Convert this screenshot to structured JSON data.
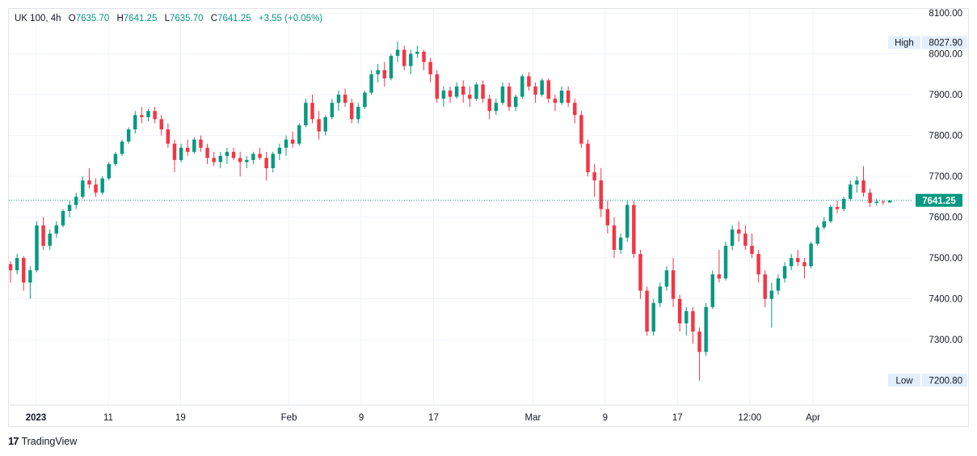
{
  "legend": {
    "symbol": "UK 100, 4h",
    "o_label": "O",
    "o_value": "7635.70",
    "h_label": "H",
    "h_value": "7641.25",
    "l_label": "L",
    "l_value": "7635.70",
    "c_label": "C",
    "c_value": "7641.25",
    "change": "+3.55 (+0.05%)"
  },
  "footer": {
    "logo": "17",
    "brand": "TradingView"
  },
  "colors": {
    "up": "#089981",
    "down": "#f23645",
    "grid": "#f0f3fa",
    "badge_bg": "#e3effd",
    "last_price_bg": "#089981"
  },
  "chart_data": {
    "type": "candlestick",
    "title": "UK 100, 4h",
    "y_axis": {
      "ticks": [
        "8100.00",
        "8000.00",
        "7900.00",
        "7800.00",
        "7700.00",
        "7600.00",
        "7500.00",
        "7400.00",
        "7300.00"
      ],
      "min": 7140,
      "max": 8110
    },
    "x_axis": {
      "ticks": [
        {
          "label": "2023",
          "bold": true,
          "pos": 0.03
        },
        {
          "label": "11",
          "pos": 0.11
        },
        {
          "label": "19",
          "pos": 0.19
        },
        {
          "label": "Feb",
          "pos": 0.31
        },
        {
          "label": "9",
          "pos": 0.39
        },
        {
          "label": "17",
          "pos": 0.47
        },
        {
          "label": "Mar",
          "pos": 0.58
        },
        {
          "label": "9",
          "pos": 0.66
        },
        {
          "label": "17",
          "pos": 0.74
        },
        {
          "label": "12:00",
          "pos": 0.82
        },
        {
          "label": "Apr",
          "pos": 0.89
        }
      ]
    },
    "high_marker": {
      "label": "High",
      "value": "8027.90"
    },
    "low_marker": {
      "label": "Low",
      "value": "7200.80"
    },
    "last_price": {
      "value": "7641.25",
      "numeric": 7641.25
    },
    "candles": [
      [
        7485,
        7492,
        7440,
        7470
      ],
      [
        7470,
        7510,
        7460,
        7500
      ],
      [
        7500,
        7505,
        7420,
        7440
      ],
      [
        7440,
        7480,
        7400,
        7470
      ],
      [
        7470,
        7590,
        7465,
        7580
      ],
      [
        7580,
        7600,
        7520,
        7530
      ],
      [
        7530,
        7570,
        7520,
        7560
      ],
      [
        7560,
        7590,
        7550,
        7580
      ],
      [
        7580,
        7620,
        7575,
        7615
      ],
      [
        7615,
        7640,
        7600,
        7630
      ],
      [
        7630,
        7660,
        7620,
        7650
      ],
      [
        7650,
        7700,
        7645,
        7690
      ],
      [
        7690,
        7720,
        7670,
        7680
      ],
      [
        7680,
        7695,
        7650,
        7660
      ],
      [
        7660,
        7700,
        7655,
        7695
      ],
      [
        7695,
        7735,
        7690,
        7730
      ],
      [
        7730,
        7760,
        7725,
        7755
      ],
      [
        7755,
        7790,
        7750,
        7785
      ],
      [
        7785,
        7820,
        7780,
        7815
      ],
      [
        7815,
        7860,
        7805,
        7850
      ],
      [
        7850,
        7870,
        7830,
        7845
      ],
      [
        7845,
        7865,
        7835,
        7860
      ],
      [
        7860,
        7870,
        7830,
        7840
      ],
      [
        7840,
        7850,
        7800,
        7815
      ],
      [
        7815,
        7830,
        7770,
        7780
      ],
      [
        7780,
        7790,
        7710,
        7740
      ],
      [
        7740,
        7780,
        7735,
        7770
      ],
      [
        7770,
        7790,
        7750,
        7760
      ],
      [
        7760,
        7795,
        7755,
        7790
      ],
      [
        7790,
        7800,
        7760,
        7770
      ],
      [
        7770,
        7780,
        7730,
        7745
      ],
      [
        7745,
        7760,
        7725,
        7735
      ],
      [
        7735,
        7760,
        7720,
        7750
      ],
      [
        7750,
        7770,
        7730,
        7760
      ],
      [
        7760,
        7770,
        7740,
        7745
      ],
      [
        7745,
        7760,
        7700,
        7735
      ],
      [
        7735,
        7750,
        7720,
        7740
      ],
      [
        7740,
        7760,
        7730,
        7755
      ],
      [
        7755,
        7770,
        7740,
        7745
      ],
      [
        7745,
        7760,
        7690,
        7720
      ],
      [
        7720,
        7760,
        7710,
        7755
      ],
      [
        7755,
        7780,
        7740,
        7770
      ],
      [
        7770,
        7800,
        7750,
        7790
      ],
      [
        7790,
        7810,
        7770,
        7780
      ],
      [
        7780,
        7830,
        7775,
        7825
      ],
      [
        7825,
        7890,
        7820,
        7880
      ],
      [
        7880,
        7900,
        7830,
        7840
      ],
      [
        7840,
        7860,
        7790,
        7810
      ],
      [
        7810,
        7850,
        7800,
        7845
      ],
      [
        7845,
        7890,
        7840,
        7880
      ],
      [
        7880,
        7910,
        7860,
        7900
      ],
      [
        7900,
        7915,
        7870,
        7880
      ],
      [
        7880,
        7890,
        7830,
        7840
      ],
      [
        7840,
        7880,
        7830,
        7870
      ],
      [
        7870,
        7910,
        7865,
        7905
      ],
      [
        7905,
        7960,
        7900,
        7950
      ],
      [
        7950,
        7975,
        7930,
        7960
      ],
      [
        7960,
        7980,
        7920,
        7940
      ],
      [
        7940,
        8000,
        7935,
        7995
      ],
      [
        7995,
        8030,
        7980,
        8010
      ],
      [
        8010,
        8020,
        7960,
        7970
      ],
      [
        7970,
        8010,
        7950,
        8000
      ],
      [
        8000,
        8020,
        7990,
        8005
      ],
      [
        8005,
        8010,
        7960,
        7980
      ],
      [
        7980,
        7990,
        7930,
        7950
      ],
      [
        7950,
        7960,
        7880,
        7890
      ],
      [
        7890,
        7920,
        7870,
        7910
      ],
      [
        7910,
        7920,
        7880,
        7895
      ],
      [
        7895,
        7930,
        7890,
        7920
      ],
      [
        7920,
        7935,
        7880,
        7900
      ],
      [
        7900,
        7920,
        7870,
        7890
      ],
      [
        7890,
        7930,
        7885,
        7925
      ],
      [
        7925,
        7935,
        7880,
        7890
      ],
      [
        7890,
        7900,
        7840,
        7860
      ],
      [
        7860,
        7890,
        7850,
        7880
      ],
      [
        7880,
        7930,
        7875,
        7920
      ],
      [
        7920,
        7930,
        7860,
        7870
      ],
      [
        7870,
        7900,
        7860,
        7895
      ],
      [
        7895,
        7950,
        7890,
        7945
      ],
      [
        7945,
        7955,
        7910,
        7920
      ],
      [
        7920,
        7930,
        7880,
        7900
      ],
      [
        7900,
        7940,
        7895,
        7935
      ],
      [
        7935,
        7940,
        7880,
        7890
      ],
      [
        7890,
        7900,
        7860,
        7880
      ],
      [
        7880,
        7920,
        7875,
        7910
      ],
      [
        7910,
        7920,
        7870,
        7880
      ],
      [
        7880,
        7890,
        7830,
        7850
      ],
      [
        7850,
        7860,
        7770,
        7780
      ],
      [
        7780,
        7790,
        7700,
        7710
      ],
      [
        7710,
        7730,
        7650,
        7690
      ],
      [
        7690,
        7720,
        7600,
        7620
      ],
      [
        7620,
        7640,
        7560,
        7580
      ],
      [
        7580,
        7600,
        7500,
        7520
      ],
      [
        7520,
        7560,
        7510,
        7550
      ],
      [
        7550,
        7640,
        7540,
        7630
      ],
      [
        7630,
        7640,
        7500,
        7510
      ],
      [
        7510,
        7520,
        7400,
        7420
      ],
      [
        7420,
        7430,
        7310,
        7320
      ],
      [
        7320,
        7400,
        7310,
        7390
      ],
      [
        7390,
        7440,
        7380,
        7430
      ],
      [
        7430,
        7480,
        7420,
        7470
      ],
      [
        7470,
        7500,
        7380,
        7400
      ],
      [
        7400,
        7410,
        7320,
        7340
      ],
      [
        7340,
        7380,
        7310,
        7370
      ],
      [
        7370,
        7380,
        7290,
        7320
      ],
      [
        7320,
        7330,
        7200,
        7270
      ],
      [
        7270,
        7390,
        7260,
        7380
      ],
      [
        7380,
        7470,
        7375,
        7460
      ],
      [
        7460,
        7520,
        7440,
        7450
      ],
      [
        7450,
        7540,
        7445,
        7530
      ],
      [
        7530,
        7580,
        7520,
        7570
      ],
      [
        7570,
        7590,
        7540,
        7560
      ],
      [
        7560,
        7580,
        7520,
        7530
      ],
      [
        7530,
        7560,
        7500,
        7510
      ],
      [
        7510,
        7520,
        7440,
        7460
      ],
      [
        7460,
        7470,
        7380,
        7400
      ],
      [
        7400,
        7440,
        7330,
        7420
      ],
      [
        7420,
        7460,
        7410,
        7450
      ],
      [
        7450,
        7490,
        7440,
        7480
      ],
      [
        7480,
        7510,
        7470,
        7500
      ],
      [
        7500,
        7520,
        7480,
        7490
      ],
      [
        7490,
        7500,
        7450,
        7480
      ],
      [
        7480,
        7540,
        7475,
        7535
      ],
      [
        7535,
        7580,
        7530,
        7575
      ],
      [
        7575,
        7600,
        7570,
        7590
      ],
      [
        7590,
        7630,
        7585,
        7625
      ],
      [
        7625,
        7640,
        7610,
        7620
      ],
      [
        7620,
        7650,
        7615,
        7645
      ],
      [
        7645,
        7690,
        7640,
        7680
      ],
      [
        7680,
        7700,
        7660,
        7690
      ],
      [
        7690,
        7725,
        7650,
        7660
      ],
      [
        7660,
        7670,
        7625,
        7635
      ],
      [
        7635,
        7645,
        7628,
        7638
      ],
      [
        7638,
        7642,
        7630,
        7636
      ],
      [
        7636,
        7641,
        7635,
        7641
      ]
    ]
  }
}
